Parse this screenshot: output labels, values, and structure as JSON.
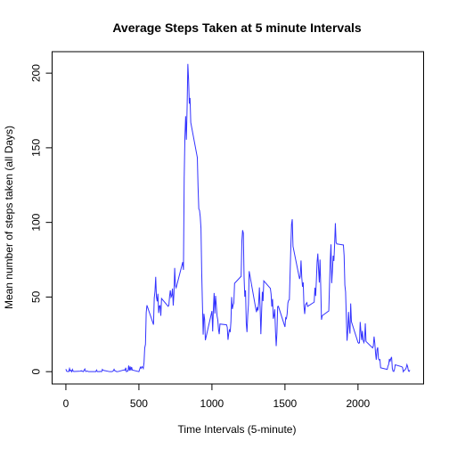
{
  "chart_data": {
    "type": "line",
    "title": "Average Steps Taken at 5 minute Intervals",
    "xlabel": "Time Intervals (5-minute)",
    "ylabel": "Mean number of steps taken (all Days)",
    "color": "#3333ff",
    "x": [
      0,
      5,
      10,
      15,
      20,
      25,
      30,
      35,
      40,
      45,
      50,
      55,
      100,
      105,
      110,
      115,
      120,
      125,
      130,
      135,
      140,
      145,
      150,
      155,
      200,
      205,
      210,
      215,
      220,
      225,
      230,
      235,
      240,
      245,
      250,
      255,
      300,
      305,
      310,
      315,
      320,
      325,
      330,
      335,
      340,
      345,
      350,
      355,
      400,
      405,
      410,
      415,
      420,
      425,
      430,
      435,
      440,
      445,
      450,
      455,
      500,
      505,
      510,
      515,
      520,
      525,
      530,
      535,
      540,
      545,
      550,
      555,
      600,
      605,
      610,
      615,
      620,
      625,
      630,
      635,
      640,
      645,
      650,
      655,
      700,
      705,
      710,
      715,
      720,
      725,
      730,
      735,
      740,
      745,
      750,
      755,
      800,
      805,
      810,
      815,
      820,
      825,
      830,
      835,
      840,
      845,
      850,
      855,
      900,
      905,
      910,
      915,
      920,
      925,
      930,
      935,
      940,
      945,
      950,
      955,
      1000,
      1005,
      1010,
      1015,
      1020,
      1025,
      1030,
      1035,
      1040,
      1045,
      1050,
      1055,
      1100,
      1105,
      1110,
      1115,
      1120,
      1125,
      1130,
      1135,
      1140,
      1145,
      1150,
      1155,
      1200,
      1205,
      1210,
      1215,
      1220,
      1225,
      1230,
      1235,
      1240,
      1245,
      1250,
      1255,
      1300,
      1305,
      1310,
      1315,
      1320,
      1325,
      1330,
      1335,
      1340,
      1345,
      1350,
      1355,
      1400,
      1405,
      1410,
      1415,
      1420,
      1425,
      1430,
      1435,
      1440,
      1445,
      1450,
      1455,
      1500,
      1505,
      1510,
      1515,
      1520,
      1525,
      1530,
      1535,
      1540,
      1545,
      1550,
      1555,
      1600,
      1605,
      1610,
      1615,
      1620,
      1625,
      1630,
      1635,
      1640,
      1645,
      1650,
      1655,
      1700,
      1705,
      1710,
      1715,
      1720,
      1725,
      1730,
      1735,
      1740,
      1745,
      1750,
      1755,
      1800,
      1805,
      1810,
      1815,
      1820,
      1825,
      1830,
      1835,
      1840,
      1845,
      1850,
      1855,
      1900,
      1905,
      1910,
      1915,
      1920,
      1925,
      1930,
      1935,
      1940,
      1945,
      1950,
      1955,
      2000,
      2005,
      2010,
      2015,
      2020,
      2025,
      2030,
      2035,
      2040,
      2045,
      2050,
      2055,
      2100,
      2105,
      2110,
      2115,
      2120,
      2125,
      2130,
      2135,
      2140,
      2145,
      2150,
      2155,
      2200,
      2205,
      2210,
      2215,
      2220,
      2225,
      2230,
      2235,
      2240,
      2245,
      2250,
      2255,
      2300,
      2305,
      2310,
      2315,
      2320,
      2325,
      2330,
      2335,
      2340,
      2345,
      2350,
      2355
    ],
    "values": [
      1.7,
      0.3,
      0.1,
      0.2,
      0.1,
      2.1,
      0.5,
      0.9,
      0,
      1.5,
      0.3,
      0.1,
      0.3,
      0.7,
      0.2,
      0.3,
      0,
      1.1,
      1.8,
      0.2,
      0.2,
      0.4,
      0.3,
      0,
      0,
      0,
      1.1,
      0,
      0,
      0.1,
      0,
      0.2,
      0,
      0,
      1.5,
      0.9,
      0,
      0,
      0,
      0,
      0.2,
      0.6,
      1.6,
      0.6,
      0.5,
      0.1,
      0,
      0,
      1.2,
      0.9,
      2.6,
      0,
      0.3,
      0.4,
      4.1,
      0.7,
      3.5,
      0.8,
      3.1,
      1.1,
      0,
      1.6,
      3.0,
      2.2,
      3.3,
      3.0,
      2.1,
      6.1,
      16.0,
      18.3,
      39.5,
      44.5,
      31.5,
      49.3,
      53.8,
      63.5,
      50.0,
      47.1,
      52.2,
      39.3,
      44.0,
      44.2,
      37.4,
      49.0,
      43.8,
      44.4,
      50.5,
      54.5,
      49.9,
      51.0,
      55.7,
      44.3,
      52.3,
      69.5,
      57.8,
      56.2,
      73.4,
      68.2,
      129.4,
      157.5,
      171.2,
      155.4,
      177.3,
      206.2,
      195.9,
      179.6,
      183.4,
      167.0,
      143.5,
      124.0,
      109.1,
      108.1,
      103.7,
      96.0,
      66.2,
      45.2,
      24.8,
      38.8,
      35.0,
      21.1,
      40.6,
      27.0,
      42.4,
      52.7,
      38.9,
      50.8,
      44.3,
      37.4,
      34.7,
      28.3,
      25.1,
      31.9,
      31.4,
      29.7,
      21.3,
      25.5,
      28.4,
      26.5,
      33.4,
      50.0,
      42.0,
      44.6,
      46.0,
      59.2,
      63.9,
      87.7,
      94.8,
      92.8,
      63.4,
      50.2,
      54.5,
      32.4,
      26.5,
      37.7,
      45.1,
      67.3,
      42.3,
      39.9,
      43.3,
      41.0,
      46.2,
      56.4,
      42.8,
      25.1,
      40.0,
      53.5,
      47.3,
      60.8,
      55.8,
      52.0,
      43.6,
      48.7,
      35.5,
      37.5,
      41.8,
      27.5,
      17.1,
      26.1,
      43.6,
      43.8,
      30.0,
      36.1,
      35.5,
      38.8,
      46.0,
      47.8,
      48.1,
      65.3,
      82.9,
      98.7,
      102.1,
      84.0,
      62.1,
      64.1,
      74.5,
      63.2,
      56.9,
      59.8,
      43.9,
      38.6,
      44.7,
      45.5,
      46.2,
      43.7,
      46.6,
      56.3,
      50.7,
      61.2,
      73.4,
      79.1,
      68.9,
      59.7,
      75.1,
      56.5,
      34.8,
      37.5,
      40.7,
      58.0,
      74.7,
      85.3,
      59.3,
      67.8,
      77.7,
      74.2,
      85.3,
      99.5,
      86.6,
      85.6,
      84.9,
      77.8,
      58.0,
      53.4,
      36.3,
      20.7,
      27.4,
      40.0,
      30.2,
      25.5,
      45.7,
      33.5,
      19.6,
      19.0,
      19.3,
      33.3,
      26.8,
      21.2,
      27.3,
      21.3,
      19.5,
      21.3,
      32.3,
      20.2,
      15.9,
      17.2,
      23.5,
      19.2,
      12.5,
      8.0,
      14.7,
      16.3,
      8.7,
      7.8,
      8.1,
      2.6,
      1.5,
      3.7,
      4.8,
      8.5,
      7.1,
      8.7,
      9.8,
      2.2,
      0.3,
      0.1,
      1.6,
      4.6,
      3.3,
      2.8,
      0,
      0.8,
      1.0,
      1.6,
      2.6,
      4.7,
      3.3,
      0.6,
      0.2,
      1.1
    ],
    "xlim": [
      -94.2,
      2449.2
    ],
    "xticks": [
      0,
      500,
      1000,
      1500,
      2000
    ],
    "ylim": [
      -8.25,
      214.4
    ],
    "yticks": [
      0,
      50,
      100,
      150,
      200
    ]
  }
}
